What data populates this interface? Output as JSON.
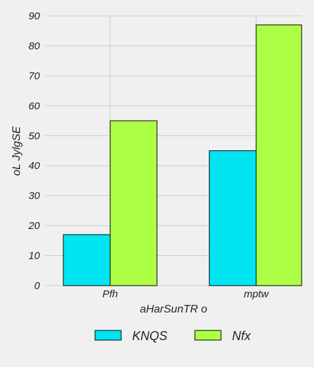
{
  "chart_data": {
    "type": "bar",
    "categories": [
      "Pfh",
      "mptw"
    ],
    "series": [
      {
        "name": "KNQS",
        "values": [
          17,
          45
        ],
        "color": "#00e5f2"
      },
      {
        "name": "Nfx",
        "values": [
          55,
          87
        ],
        "color": "#adff45"
      }
    ],
    "xlabel": "aHarSunTR o",
    "ylabel": "oL JylgSE",
    "ylim": [
      0,
      90
    ],
    "yticks": [
      0,
      10,
      20,
      30,
      40,
      50,
      60,
      70,
      80,
      90
    ],
    "grid": true,
    "legend_position": "bottom"
  }
}
